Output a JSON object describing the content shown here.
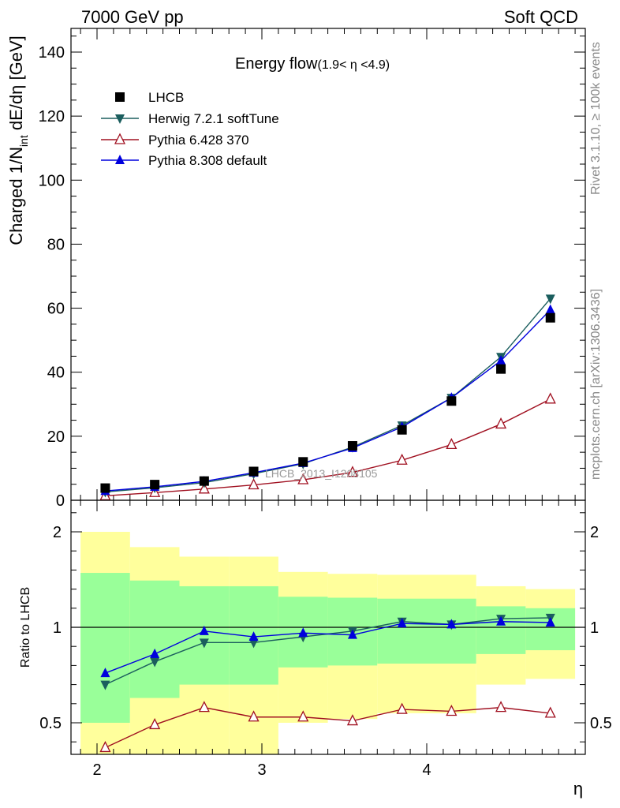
{
  "header": {
    "left": "7000 GeV pp",
    "right": "Soft QCD"
  },
  "chart_data": {
    "type": "line",
    "title": "Energy flow",
    "subtitle": "(1.9< η <4.9)",
    "xlabel": "η",
    "ylabel": "Charged 1/N",
    "ylabel_sub": "int",
    "ylabel_tail": " dE/dη [GeV]",
    "ratio_ylabel": "Ratio to LHCB",
    "watermark": "LHCB_2013_I1208105",
    "side_label_top": "Rivet 3.1.10, ≥ 100k events",
    "side_label_bottom": "mcplots.cern.ch [arXiv:1306.3436]",
    "xlim": [
      1.9,
      4.9
    ],
    "ylim": [
      0,
      148
    ],
    "ratio_ylim": [
      0.35,
      2.2
    ],
    "x_ticks": [
      "2",
      "3",
      "4"
    ],
    "y_ticks": [
      "0",
      "20",
      "40",
      "60",
      "80",
      "100",
      "120",
      "140"
    ],
    "ratio_ticks": [
      "0.5",
      "1",
      "2"
    ],
    "x": [
      2.05,
      2.35,
      2.65,
      2.95,
      3.25,
      3.55,
      3.85,
      4.15,
      4.45,
      4.75
    ],
    "bins": [
      1.9,
      2.2,
      2.5,
      2.8,
      3.1,
      3.4,
      3.7,
      4.0,
      4.3,
      4.6,
      4.9
    ],
    "band_inner": {
      "low": [
        0.5,
        0.63,
        0.7,
        0.7,
        0.79,
        0.8,
        0.81,
        0.81,
        0.86,
        0.88
      ],
      "high": [
        1.57,
        1.49,
        1.43,
        1.43,
        1.32,
        1.31,
        1.3,
        1.3,
        1.22,
        1.2
      ]
    },
    "band_outer": {
      "low": [
        0.3,
        0.3,
        0.3,
        0.3,
        0.5,
        0.52,
        0.55,
        0.55,
        0.7,
        0.73
      ],
      "high": [
        2.0,
        1.84,
        1.74,
        1.74,
        1.58,
        1.56,
        1.55,
        1.55,
        1.43,
        1.4
      ]
    },
    "series": [
      {
        "name": "LHCB",
        "color": "#000000",
        "marker": "square",
        "values": [
          3.8,
          4.9,
          6.0,
          9.0,
          12.0,
          17.0,
          22.0,
          31.0,
          41.0,
          57.0
        ],
        "ratio": [
          1,
          1,
          1,
          1,
          1,
          1,
          1,
          1,
          1,
          1
        ]
      },
      {
        "name": "Herwig 7.2.1 softTune",
        "color": "#1b5e5e",
        "marker": "triangle-down",
        "values": [
          2.6,
          3.9,
          5.5,
          8.3,
          11.4,
          16.6,
          23.4,
          32.0,
          44.8,
          63.0
        ],
        "ratio": [
          0.7,
          0.82,
          0.92,
          0.92,
          0.95,
          0.98,
          1.06,
          1.03,
          1.09,
          1.1
        ]
      },
      {
        "name": "Pythia 6.428 370",
        "color": "#a01020",
        "marker": "triangle-open",
        "values": [
          1.4,
          2.4,
          3.5,
          4.8,
          6.4,
          8.7,
          12.5,
          17.4,
          23.8,
          31.6
        ],
        "ratio": [
          0.37,
          0.49,
          0.58,
          0.53,
          0.53,
          0.51,
          0.57,
          0.56,
          0.58,
          0.55
        ]
      },
      {
        "name": "Pythia 8.308 default",
        "color": "#0000dd",
        "marker": "triangle-up",
        "values": [
          2.9,
          4.2,
          5.9,
          8.6,
          11.6,
          16.3,
          22.9,
          32.0,
          43.6,
          59.5
        ],
        "ratio": [
          0.76,
          0.86,
          0.98,
          0.95,
          0.97,
          0.96,
          1.04,
          1.03,
          1.06,
          1.05
        ]
      }
    ]
  }
}
